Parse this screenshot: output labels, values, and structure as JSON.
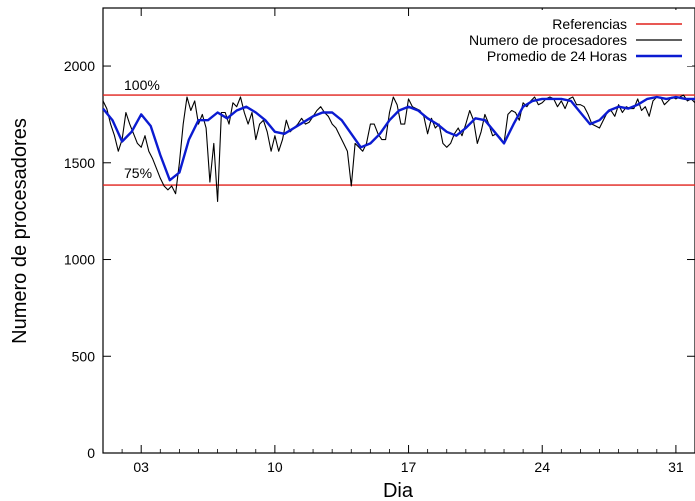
{
  "chart_data": {
    "type": "line",
    "title": "",
    "xlabel": "Dia",
    "ylabel": "Numero de procesadores",
    "xlim": [
      1,
      32
    ],
    "ylim": [
      0,
      2300
    ],
    "x_ticks": [
      {
        "value": 3,
        "label": "03"
      },
      {
        "value": 10,
        "label": "10"
      },
      {
        "value": 17,
        "label": "17"
      },
      {
        "value": 24,
        "label": "24"
      },
      {
        "value": 31,
        "label": "31"
      }
    ],
    "y_ticks": [
      0,
      500,
      1000,
      1500,
      2000
    ],
    "grid": false,
    "legend_position": "top-right",
    "reference_lines": {
      "name": "Referencias",
      "color": "#e0201b",
      "lines": [
        {
          "value": 1850,
          "label": "100%"
        },
        {
          "value": 1385,
          "label": "75%"
        }
      ]
    },
    "series": [
      {
        "name": "Numero de procesadores",
        "color": "#000000",
        "x": [
          1.0,
          1.2,
          1.4,
          1.6,
          1.8,
          2.0,
          2.2,
          2.4,
          2.6,
          2.8,
          3.0,
          3.2,
          3.4,
          3.6,
          3.8,
          4.0,
          4.2,
          4.4,
          4.6,
          4.8,
          5.0,
          5.2,
          5.4,
          5.6,
          5.8,
          6.0,
          6.2,
          6.4,
          6.6,
          6.8,
          7.0,
          7.2,
          7.4,
          7.6,
          7.8,
          8.0,
          8.2,
          8.4,
          8.6,
          8.8,
          9.0,
          9.2,
          9.4,
          9.6,
          9.8,
          10.0,
          10.2,
          10.4,
          10.6,
          10.8,
          11.0,
          11.2,
          11.4,
          11.6,
          11.8,
          12.0,
          12.2,
          12.4,
          12.6,
          12.8,
          13.0,
          13.2,
          13.4,
          13.6,
          13.8,
          14.0,
          14.2,
          14.4,
          14.6,
          14.8,
          15.0,
          15.2,
          15.4,
          15.6,
          15.8,
          16.0,
          16.2,
          16.4,
          16.6,
          16.8,
          17.0,
          17.2,
          17.4,
          17.6,
          17.8,
          18.0,
          18.2,
          18.4,
          18.6,
          18.8,
          19.0,
          19.2,
          19.4,
          19.6,
          19.8,
          20.0,
          20.2,
          20.4,
          20.6,
          20.8,
          21.0,
          21.2,
          21.4,
          21.6,
          21.8,
          22.0,
          22.2,
          22.4,
          22.6,
          22.8,
          23.0,
          23.2,
          23.4,
          23.6,
          23.8,
          24.0,
          24.2,
          24.4,
          24.6,
          24.8,
          25.0,
          25.2,
          25.4,
          25.6,
          25.8,
          26.0,
          26.2,
          26.4,
          26.6,
          26.8,
          27.0,
          27.2,
          27.4,
          27.6,
          27.8,
          28.0,
          28.2,
          28.4,
          28.6,
          28.8,
          29.0,
          29.2,
          29.4,
          29.6,
          29.8,
          30.0,
          30.2,
          30.4,
          30.6,
          30.8,
          31.0,
          31.2,
          31.4,
          31.6,
          31.8,
          32.0
        ],
        "values": [
          1820,
          1780,
          1700,
          1640,
          1560,
          1620,
          1760,
          1700,
          1650,
          1600,
          1580,
          1640,
          1560,
          1520,
          1470,
          1420,
          1380,
          1360,
          1380,
          1340,
          1500,
          1700,
          1840,
          1770,
          1820,
          1700,
          1750,
          1680,
          1400,
          1600,
          1300,
          1760,
          1760,
          1700,
          1810,
          1790,
          1840,
          1760,
          1700,
          1760,
          1620,
          1700,
          1720,
          1660,
          1560,
          1640,
          1560,
          1620,
          1720,
          1660,
          1680,
          1700,
          1730,
          1700,
          1710,
          1740,
          1770,
          1790,
          1760,
          1740,
          1700,
          1680,
          1640,
          1600,
          1560,
          1380,
          1600,
          1580,
          1560,
          1600,
          1700,
          1700,
          1650,
          1620,
          1620,
          1760,
          1840,
          1800,
          1700,
          1700,
          1830,
          1790,
          1780,
          1770,
          1740,
          1650,
          1730,
          1680,
          1700,
          1600,
          1580,
          1600,
          1650,
          1680,
          1640,
          1700,
          1770,
          1720,
          1600,
          1660,
          1750,
          1700,
          1640,
          1650,
          1630,
          1600,
          1750,
          1770,
          1760,
          1720,
          1810,
          1790,
          1820,
          1840,
          1800,
          1810,
          1830,
          1840,
          1830,
          1790,
          1820,
          1780,
          1830,
          1840,
          1800,
          1800,
          1790,
          1750,
          1700,
          1690,
          1680,
          1720,
          1760,
          1770,
          1740,
          1800,
          1760,
          1790,
          1780,
          1780,
          1830,
          1770,
          1790,
          1740,
          1820,
          1840,
          1840,
          1800,
          1820,
          1840,
          1830,
          1840,
          1850,
          1820,
          1830,
          1810
        ]
      },
      {
        "name": "Promedio de 24 Horas",
        "color": "#0b1bd1",
        "x": [
          1.0,
          1.5,
          2.0,
          2.5,
          3.0,
          3.5,
          4.0,
          4.5,
          5.0,
          5.5,
          6.0,
          6.5,
          7.0,
          7.5,
          8.0,
          8.5,
          9.0,
          9.5,
          10.0,
          10.5,
          11.0,
          11.5,
          12.0,
          12.5,
          13.0,
          13.5,
          14.0,
          14.5,
          15.0,
          15.5,
          16.0,
          16.5,
          17.0,
          17.5,
          18.0,
          18.5,
          19.0,
          19.5,
          20.0,
          20.5,
          21.0,
          21.5,
          22.0,
          22.5,
          23.0,
          23.5,
          24.0,
          24.5,
          25.0,
          25.5,
          26.0,
          26.5,
          27.0,
          27.5,
          28.0,
          28.5,
          29.0,
          29.5,
          30.0,
          30.5,
          31.0,
          31.5,
          32.0
        ],
        "values": [
          1780,
          1720,
          1610,
          1660,
          1750,
          1690,
          1540,
          1410,
          1450,
          1620,
          1720,
          1720,
          1760,
          1730,
          1770,
          1790,
          1760,
          1720,
          1660,
          1650,
          1680,
          1710,
          1740,
          1760,
          1760,
          1720,
          1650,
          1580,
          1600,
          1650,
          1720,
          1770,
          1790,
          1770,
          1730,
          1700,
          1660,
          1640,
          1680,
          1730,
          1720,
          1660,
          1600,
          1700,
          1790,
          1820,
          1830,
          1830,
          1830,
          1820,
          1760,
          1700,
          1720,
          1770,
          1790,
          1780,
          1800,
          1830,
          1840,
          1830,
          1840,
          1830,
          1830
        ]
      }
    ]
  }
}
